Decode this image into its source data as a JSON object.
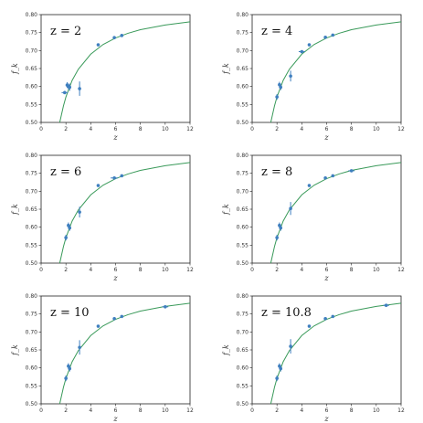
{
  "colors": {
    "curve": "#3a9a5a",
    "point": "#3f7fbf",
    "axis": "#222222"
  },
  "chart_data": [
    {
      "type": "scatter",
      "title": "z = 2",
      "xlabel": "z",
      "ylabel": "f_k",
      "xlim": [
        0,
        12
      ],
      "ylim": [
        0.5,
        0.8
      ],
      "xticks": [
        "0",
        "2",
        "4",
        "6",
        "8",
        "10",
        "12"
      ],
      "yticks": [
        "0.50",
        "0.55",
        "0.60",
        "0.65",
        "0.70",
        "0.75",
        "0.80"
      ],
      "points": [
        {
          "x": 1.9,
          "y": 0.583,
          "xerr": 0.25,
          "yerr": 0.004
        },
        {
          "x": 2.1,
          "y": 0.604,
          "yerr": 0.008
        },
        {
          "x": 2.2,
          "y": 0.6,
          "yerr": 0.008
        },
        {
          "x": 2.3,
          "y": 0.598,
          "yerr": 0.01
        },
        {
          "x": 3.1,
          "y": 0.594,
          "yerr": 0.02
        },
        {
          "x": 4.6,
          "y": 0.716
        },
        {
          "x": 5.9,
          "y": 0.736
        },
        {
          "x": 6.5,
          "y": 0.742
        }
      ],
      "curve": [
        [
          1.5,
          0.5
        ],
        [
          1.8,
          0.546
        ],
        [
          2.0,
          0.571
        ],
        [
          2.5,
          0.617
        ],
        [
          3.0,
          0.648
        ],
        [
          4.0,
          0.69
        ],
        [
          5.0,
          0.717
        ],
        [
          6.0,
          0.735
        ],
        [
          7.0,
          0.748
        ],
        [
          8.0,
          0.758
        ],
        [
          10.0,
          0.771
        ],
        [
          12.0,
          0.78
        ]
      ]
    },
    {
      "type": "scatter",
      "title": "z = 4",
      "xlabel": "z",
      "ylabel": "f_k",
      "xlim": [
        0,
        12
      ],
      "ylim": [
        0.5,
        0.8
      ],
      "xticks": [
        "0",
        "2",
        "4",
        "6",
        "8",
        "10",
        "12"
      ],
      "yticks": [
        "0.50",
        "0.55",
        "0.60",
        "0.65",
        "0.70",
        "0.75",
        "0.80"
      ],
      "points": [
        {
          "x": 2.0,
          "y": 0.571,
          "yerr": 0.008
        },
        {
          "x": 2.2,
          "y": 0.605,
          "yerr": 0.008
        },
        {
          "x": 2.3,
          "y": 0.598,
          "yerr": 0.008
        },
        {
          "x": 3.1,
          "y": 0.629,
          "yerr": 0.015
        },
        {
          "x": 4.0,
          "y": 0.697,
          "xerr": 0.25
        },
        {
          "x": 4.6,
          "y": 0.716
        },
        {
          "x": 5.9,
          "y": 0.737
        },
        {
          "x": 6.5,
          "y": 0.743
        }
      ],
      "curve": [
        [
          1.5,
          0.5
        ],
        [
          1.8,
          0.546
        ],
        [
          2.0,
          0.571
        ],
        [
          2.5,
          0.617
        ],
        [
          3.0,
          0.648
        ],
        [
          4.0,
          0.69
        ],
        [
          5.0,
          0.717
        ],
        [
          6.0,
          0.735
        ],
        [
          7.0,
          0.748
        ],
        [
          8.0,
          0.758
        ],
        [
          10.0,
          0.771
        ],
        [
          12.0,
          0.78
        ]
      ]
    },
    {
      "type": "scatter",
      "title": "z = 6",
      "xlabel": "z",
      "ylabel": "f_k",
      "xlim": [
        0,
        12
      ],
      "ylim": [
        0.5,
        0.8
      ],
      "xticks": [
        "0",
        "2",
        "4",
        "6",
        "8",
        "10",
        "12"
      ],
      "yticks": [
        "0.50",
        "0.55",
        "0.60",
        "0.65",
        "0.70",
        "0.75",
        "0.80"
      ],
      "points": [
        {
          "x": 2.0,
          "y": 0.571,
          "yerr": 0.008
        },
        {
          "x": 2.2,
          "y": 0.605,
          "yerr": 0.008
        },
        {
          "x": 2.3,
          "y": 0.598,
          "yerr": 0.008
        },
        {
          "x": 3.1,
          "y": 0.642,
          "yerr": 0.015
        },
        {
          "x": 4.6,
          "y": 0.716
        },
        {
          "x": 5.9,
          "y": 0.737,
          "xerr": 0.3
        },
        {
          "x": 6.5,
          "y": 0.743
        }
      ],
      "curve": [
        [
          1.5,
          0.5
        ],
        [
          1.8,
          0.546
        ],
        [
          2.0,
          0.571
        ],
        [
          2.5,
          0.617
        ],
        [
          3.0,
          0.648
        ],
        [
          4.0,
          0.69
        ],
        [
          5.0,
          0.717
        ],
        [
          6.0,
          0.735
        ],
        [
          7.0,
          0.748
        ],
        [
          8.0,
          0.758
        ],
        [
          10.0,
          0.771
        ],
        [
          12.0,
          0.78
        ]
      ]
    },
    {
      "type": "scatter",
      "title": "z = 8",
      "xlabel": "z",
      "ylabel": "f_k",
      "xlim": [
        0,
        12
      ],
      "ylim": [
        0.5,
        0.8
      ],
      "xticks": [
        "0",
        "2",
        "4",
        "6",
        "8",
        "10",
        "12"
      ],
      "yticks": [
        "0.50",
        "0.55",
        "0.60",
        "0.65",
        "0.70",
        "0.75",
        "0.80"
      ],
      "points": [
        {
          "x": 2.0,
          "y": 0.571,
          "yerr": 0.008
        },
        {
          "x": 2.2,
          "y": 0.605,
          "yerr": 0.008
        },
        {
          "x": 2.3,
          "y": 0.598,
          "yerr": 0.008
        },
        {
          "x": 3.1,
          "y": 0.652,
          "yerr": 0.018
        },
        {
          "x": 4.6,
          "y": 0.716
        },
        {
          "x": 5.9,
          "y": 0.737
        },
        {
          "x": 6.5,
          "y": 0.743
        },
        {
          "x": 8.0,
          "y": 0.757,
          "xerr": 0.25
        }
      ],
      "curve": [
        [
          1.5,
          0.5
        ],
        [
          1.8,
          0.546
        ],
        [
          2.0,
          0.571
        ],
        [
          2.5,
          0.617
        ],
        [
          3.0,
          0.648
        ],
        [
          4.0,
          0.69
        ],
        [
          5.0,
          0.717
        ],
        [
          6.0,
          0.735
        ],
        [
          7.0,
          0.748
        ],
        [
          8.0,
          0.758
        ],
        [
          10.0,
          0.771
        ],
        [
          12.0,
          0.78
        ]
      ]
    },
    {
      "type": "scatter",
      "title": "z = 10",
      "xlabel": "z",
      "ylabel": "f_k",
      "xlim": [
        0,
        12
      ],
      "ylim": [
        0.5,
        0.8
      ],
      "xticks": [
        "0",
        "2",
        "4",
        "6",
        "8",
        "10",
        "12"
      ],
      "yticks": [
        "0.50",
        "0.55",
        "0.60",
        "0.65",
        "0.70",
        "0.75",
        "0.80"
      ],
      "points": [
        {
          "x": 2.0,
          "y": 0.571,
          "yerr": 0.008
        },
        {
          "x": 2.2,
          "y": 0.605,
          "yerr": 0.008
        },
        {
          "x": 2.3,
          "y": 0.598,
          "yerr": 0.008
        },
        {
          "x": 3.1,
          "y": 0.657,
          "yerr": 0.02
        },
        {
          "x": 4.6,
          "y": 0.716
        },
        {
          "x": 5.9,
          "y": 0.737
        },
        {
          "x": 6.5,
          "y": 0.743
        },
        {
          "x": 10.0,
          "y": 0.77,
          "xerr": 0.25
        }
      ],
      "curve": [
        [
          1.5,
          0.5
        ],
        [
          1.8,
          0.546
        ],
        [
          2.0,
          0.571
        ],
        [
          2.5,
          0.617
        ],
        [
          3.0,
          0.648
        ],
        [
          4.0,
          0.69
        ],
        [
          5.0,
          0.717
        ],
        [
          6.0,
          0.735
        ],
        [
          7.0,
          0.748
        ],
        [
          8.0,
          0.758
        ],
        [
          10.0,
          0.771
        ],
        [
          12.0,
          0.78
        ]
      ]
    },
    {
      "type": "scatter",
      "title": "z = 10.8",
      "xlabel": "z",
      "ylabel": "f_k",
      "xlim": [
        0,
        12
      ],
      "ylim": [
        0.5,
        0.8
      ],
      "xticks": [
        "0",
        "2",
        "4",
        "6",
        "8",
        "10",
        "12"
      ],
      "yticks": [
        "0.50",
        "0.55",
        "0.60",
        "0.65",
        "0.70",
        "0.75",
        "0.80"
      ],
      "points": [
        {
          "x": 2.0,
          "y": 0.571,
          "yerr": 0.008
        },
        {
          "x": 2.2,
          "y": 0.605,
          "yerr": 0.008
        },
        {
          "x": 2.3,
          "y": 0.598,
          "yerr": 0.008
        },
        {
          "x": 3.1,
          "y": 0.66,
          "yerr": 0.02
        },
        {
          "x": 4.6,
          "y": 0.716
        },
        {
          "x": 5.9,
          "y": 0.737
        },
        {
          "x": 6.5,
          "y": 0.743
        },
        {
          "x": 10.8,
          "y": 0.774,
          "xerr": 0.25
        }
      ],
      "curve": [
        [
          1.5,
          0.5
        ],
        [
          1.8,
          0.546
        ],
        [
          2.0,
          0.571
        ],
        [
          2.5,
          0.617
        ],
        [
          3.0,
          0.648
        ],
        [
          4.0,
          0.69
        ],
        [
          5.0,
          0.717
        ],
        [
          6.0,
          0.735
        ],
        [
          7.0,
          0.748
        ],
        [
          8.0,
          0.758
        ],
        [
          10.0,
          0.771
        ],
        [
          12.0,
          0.78
        ]
      ]
    }
  ]
}
